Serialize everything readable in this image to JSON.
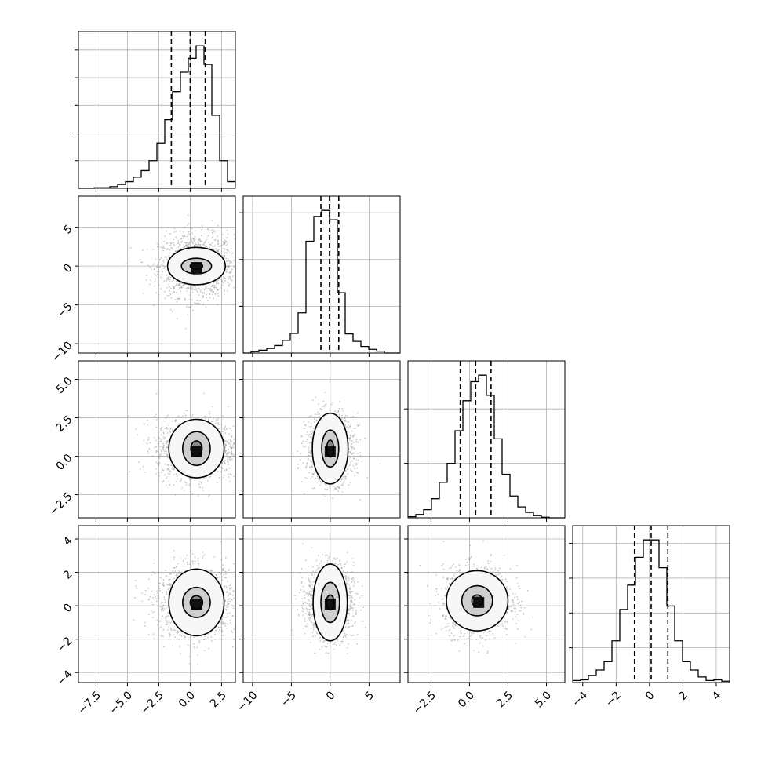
{
  "chart_data": {
    "type": "corner",
    "parameters": 4,
    "quantile_lines": "dashed",
    "grid": true,
    "hist_color": "#000000",
    "scatter_color": "#9a9a9a",
    "contour_color": "#000000",
    "axes": [
      {
        "index": 0,
        "range": [
          -8.9,
          3.6
        ],
        "ticks": [
          -7.5,
          -5.0,
          -2.5,
          0.0,
          2.5
        ],
        "tick_labels": [
          "−7.5",
          "−5.0",
          "−2.5",
          "0.0",
          "2.5"
        ]
      },
      {
        "index": 1,
        "range": [
          -11.2,
          9.0
        ],
        "ticks": [
          -10,
          -5,
          0,
          5
        ],
        "tick_labels": [
          "−10",
          "−5",
          "0",
          "5"
        ]
      },
      {
        "index": 2,
        "range": [
          -4.0,
          6.2
        ],
        "ticks": [
          -2.5,
          0.0,
          2.5,
          5.0
        ],
        "tick_labels": [
          "−2.5",
          "0.0",
          "2.5",
          "5.0"
        ]
      },
      {
        "index": 3,
        "range": [
          -4.6,
          4.8
        ],
        "ticks": [
          -4,
          -2,
          0,
          2,
          4
        ],
        "tick_labels": [
          "−4",
          "−2",
          "0",
          "2",
          "4"
        ]
      }
    ],
    "histograms": [
      {
        "param": 0,
        "quantiles": [
          -1.5,
          0.0,
          1.2
        ],
        "edges": [
          -8.9,
          -8.275,
          -7.65,
          -7.025,
          -6.4,
          -5.775,
          -5.15,
          -4.525,
          -3.9,
          -3.275,
          -2.65,
          -2.025,
          -1.4,
          -0.775,
          -0.15,
          0.475,
          1.1,
          1.725,
          2.35,
          2.975,
          3.6
        ],
        "counts": [
          0,
          0,
          1,
          1,
          3,
          7,
          12,
          20,
          32,
          50,
          82,
          124,
          175,
          210,
          235,
          258,
          224,
          132,
          50,
          12
        ]
      },
      {
        "param": 1,
        "quantiles": [
          -1.2,
          -0.1,
          1.1
        ],
        "edges": [
          -11.2,
          -10.19,
          -9.18,
          -8.17,
          -7.16,
          -6.15,
          -5.14,
          -4.13,
          -3.12,
          -2.11,
          -1.1,
          -0.09,
          0.92,
          1.93,
          2.94,
          3.95,
          4.96,
          5.97,
          6.98,
          7.99,
          9.0
        ],
        "counts": [
          0,
          3,
          6,
          10,
          16,
          27,
          42,
          86,
          239,
          292,
          305,
          285,
          129,
          41,
          25,
          14,
          8,
          4,
          0,
          0
        ]
      },
      {
        "param": 2,
        "quantiles": [
          -0.6,
          0.4,
          1.4
        ],
        "edges": [
          -4.0,
          -3.49,
          -2.98,
          -2.47,
          -1.96,
          -1.45,
          -0.94,
          -0.43,
          0.08,
          0.59,
          1.1,
          1.61,
          2.12,
          2.63,
          3.14,
          3.65,
          4.16,
          4.67,
          5.18,
          5.69,
          6.2
        ],
        "counts": [
          2,
          6,
          15,
          35,
          65,
          100,
          160,
          215,
          250,
          262,
          225,
          145,
          80,
          40,
          20,
          10,
          4,
          1,
          0,
          0
        ]
      },
      {
        "param": 3,
        "quantiles": [
          -0.9,
          0.1,
          1.1
        ],
        "edges": [
          -4.6,
          -4.13,
          -3.66,
          -3.19,
          -2.72,
          -2.25,
          -1.78,
          -1.31,
          -0.84,
          -0.37,
          0.1,
          0.57,
          1.04,
          1.51,
          1.98,
          2.45,
          2.92,
          3.39,
          3.86,
          4.33,
          4.8
        ],
        "counts": [
          3,
          4,
          10,
          18,
          30,
          60,
          105,
          140,
          180,
          205,
          205,
          165,
          110,
          60,
          30,
          18,
          8,
          3,
          4,
          2
        ]
      }
    ],
    "pairs": [
      {
        "x": 0,
        "y": 1,
        "center": [
          0.5,
          0.0
        ],
        "core": [
          0.5,
          -0.2
        ],
        "contour_radii": [
          [
            0.5,
            0.4
          ],
          [
            1.2,
            1.0
          ],
          [
            2.3,
            2.4
          ]
        ],
        "scatter_sd": [
          1.5,
          2.0
        ]
      },
      {
        "x": 0,
        "y": 2,
        "center": [
          0.5,
          0.5
        ],
        "core": [
          0.5,
          0.3
        ],
        "contour_radii": [
          [
            0.45,
            0.5
          ],
          [
            1.1,
            1.1
          ],
          [
            2.2,
            1.9
          ]
        ],
        "scatter_sd": [
          1.6,
          1.0
        ]
      },
      {
        "x": 1,
        "y": 2,
        "center": [
          0.0,
          0.5
        ],
        "core": [
          0.0,
          0.3
        ],
        "contour_radii": [
          [
            0.45,
            0.55
          ],
          [
            1.1,
            1.2
          ],
          [
            2.3,
            2.3
          ]
        ],
        "scatter_sd": [
          1.5,
          1.1
        ]
      },
      {
        "x": 0,
        "y": 3,
        "center": [
          0.5,
          0.2
        ],
        "core": [
          0.5,
          0.1
        ],
        "contour_radii": [
          [
            0.5,
            0.4
          ],
          [
            1.1,
            0.9
          ],
          [
            2.2,
            2.0
          ]
        ],
        "scatter_sd": [
          1.6,
          1.1
        ]
      },
      {
        "x": 1,
        "y": 3,
        "center": [
          0.0,
          0.2
        ],
        "core": [
          0.0,
          0.1
        ],
        "contour_radii": [
          [
            0.5,
            0.45
          ],
          [
            1.2,
            1.2
          ],
          [
            2.2,
            2.3
          ]
        ],
        "scatter_sd": [
          1.5,
          1.1
        ]
      },
      {
        "x": 2,
        "y": 3,
        "center": [
          0.5,
          0.3
        ],
        "core": [
          0.6,
          0.2
        ],
        "contour_radii": [
          [
            0.35,
            0.35
          ],
          [
            1.0,
            0.9
          ],
          [
            2.0,
            1.8
          ]
        ],
        "scatter_sd": [
          1.1,
          1.0
        ]
      }
    ]
  }
}
